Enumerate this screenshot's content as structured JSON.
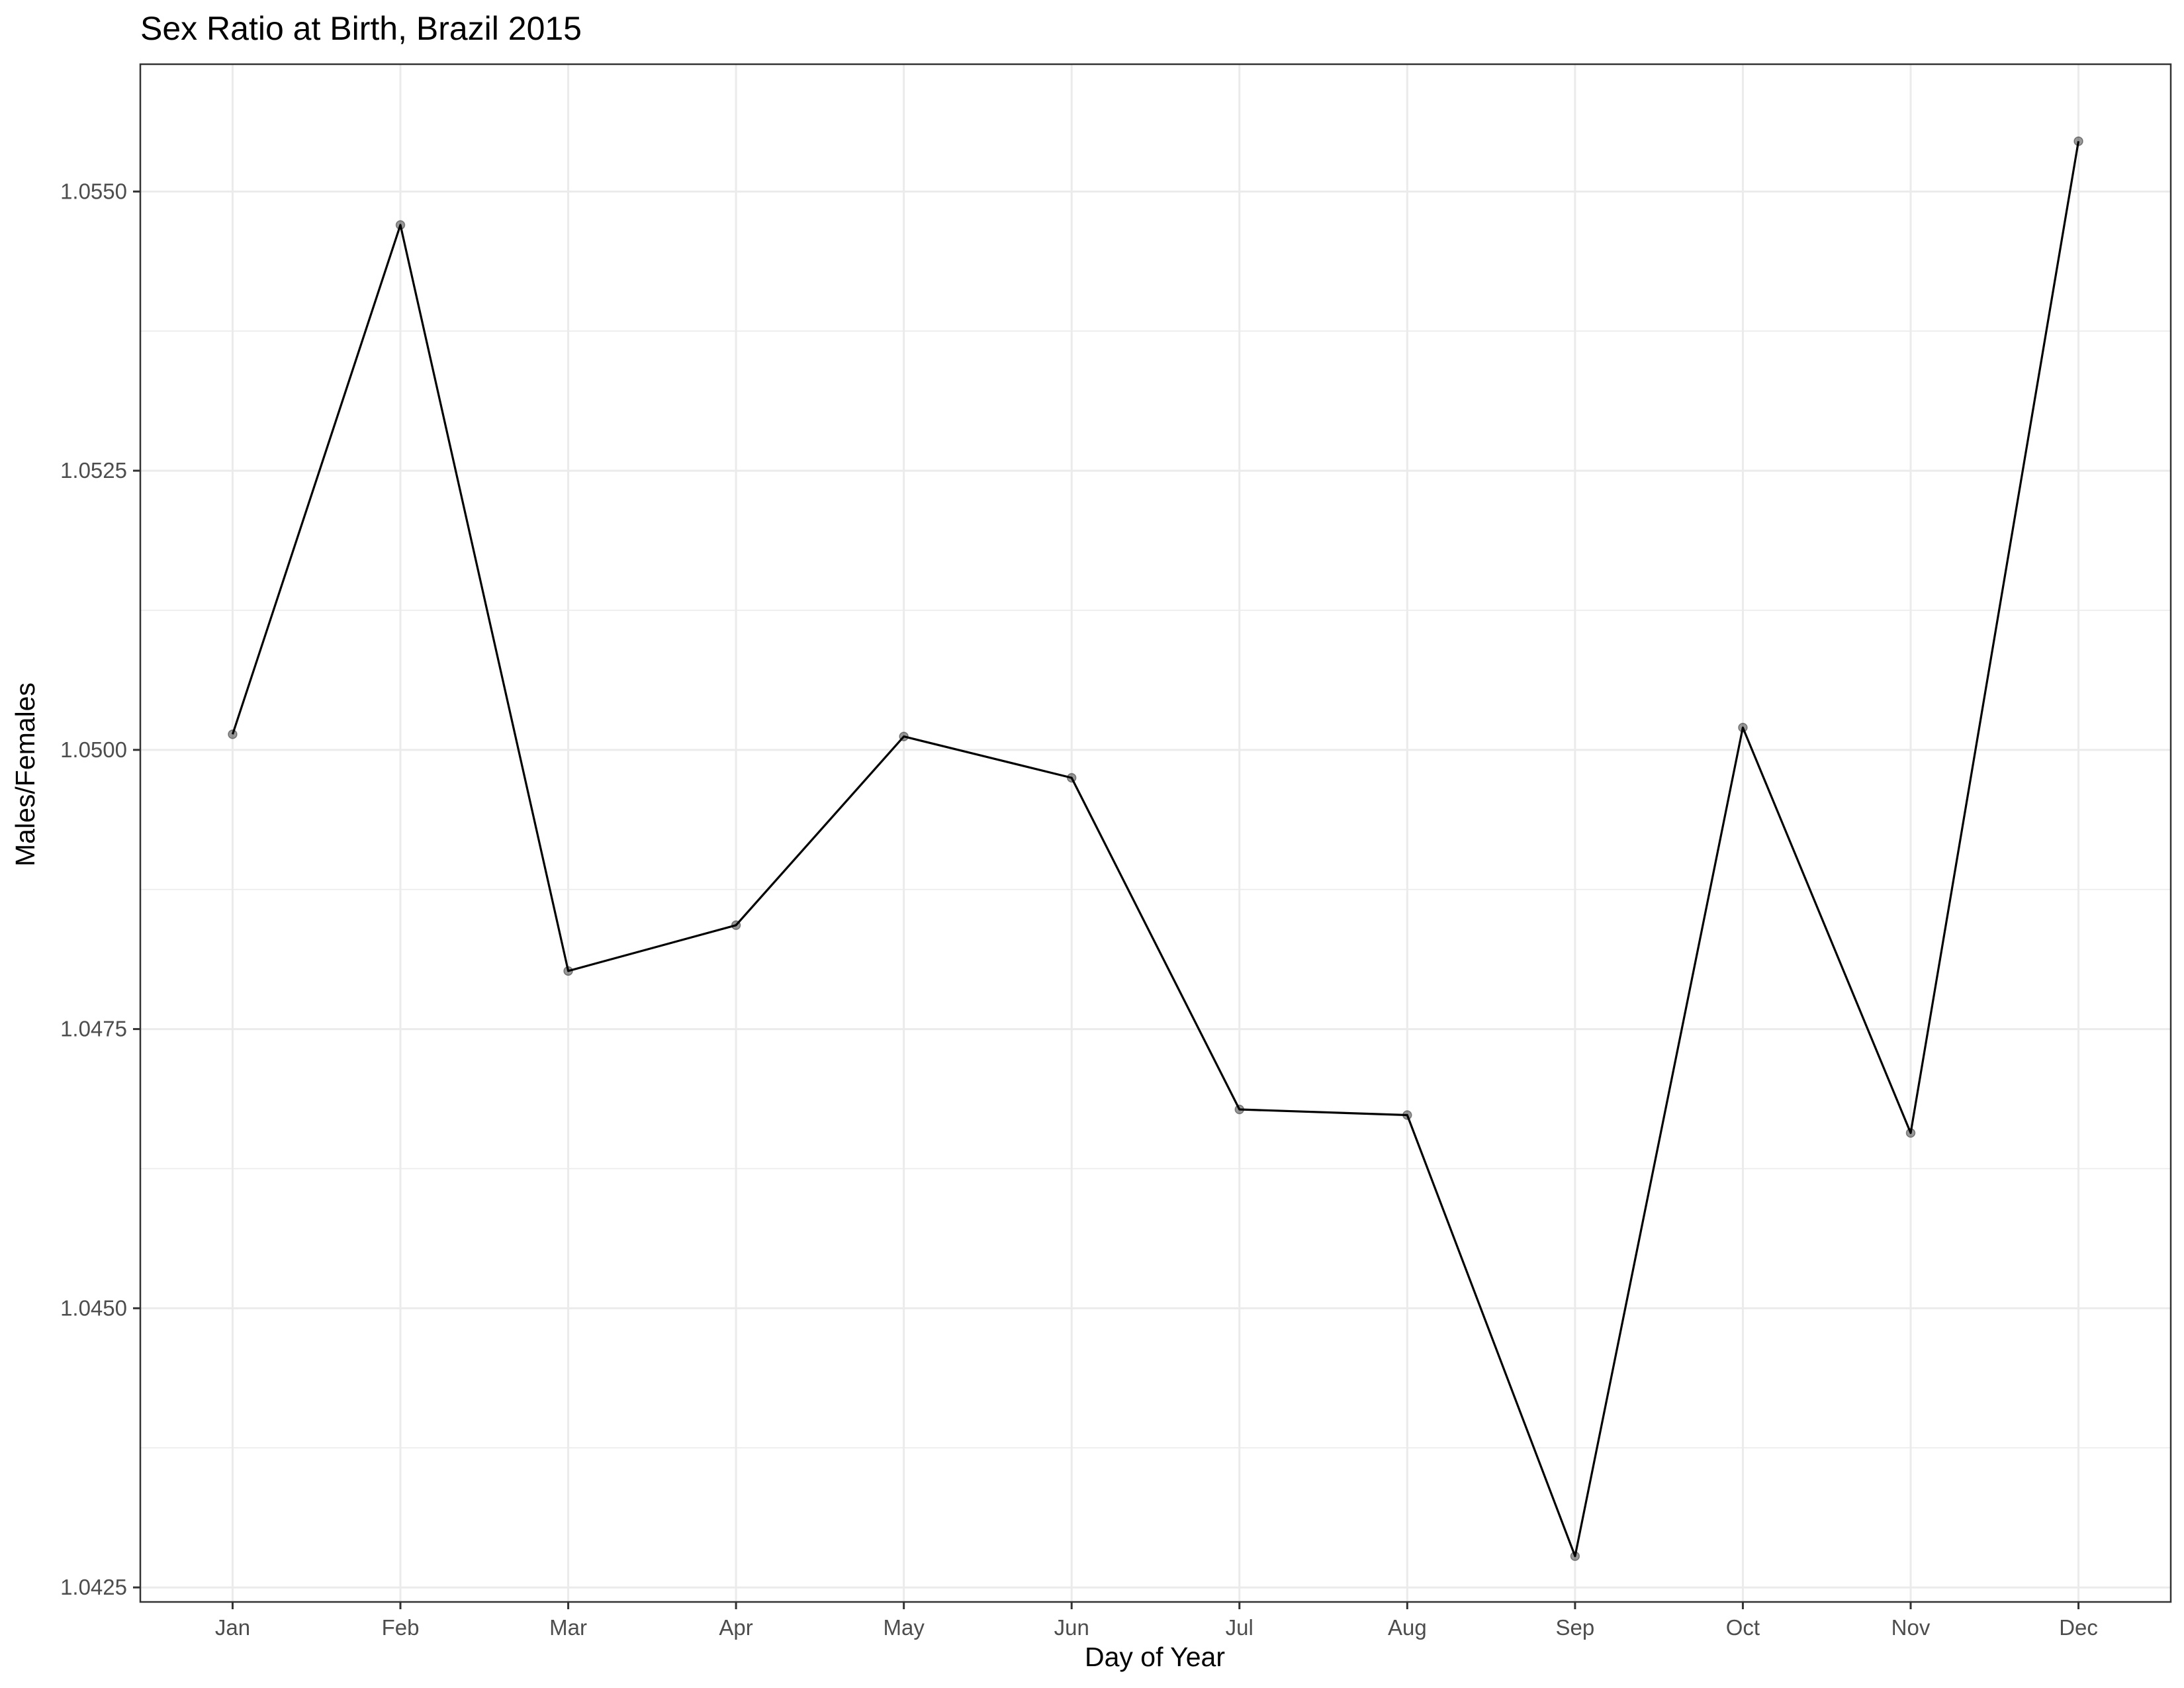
{
  "chart_data": {
    "type": "line",
    "title": "Sex Ratio at Birth, Brazil 2015",
    "xlabel": "Day of Year",
    "ylabel": "Males/Females",
    "categories": [
      "Jan",
      "Feb",
      "Mar",
      "Apr",
      "May",
      "Jun",
      "Jul",
      "Aug",
      "Sep",
      "Oct",
      "Nov",
      "Dec"
    ],
    "series": [
      {
        "values": [
          1.05014,
          1.0547,
          1.04802,
          1.04843,
          1.05012,
          1.04975,
          1.04678,
          1.04673,
          1.04278,
          1.0502,
          1.04657,
          1.05545
        ]
      }
    ],
    "ylim": [
      1.04237,
      1.05614
    ],
    "yticks": [
      1.0425,
      1.045,
      1.0475,
      1.05,
      1.0525,
      1.055
    ],
    "ytick_labels": [
      "1.0425",
      "1.0450",
      "1.0475",
      "1.0500",
      "1.0525",
      "1.0550"
    ],
    "grid": true,
    "markers": true,
    "legend": "none",
    "colors": {
      "line": "#000000",
      "point": "#000000",
      "grid": "#ebebeb",
      "border": "#333333"
    }
  }
}
